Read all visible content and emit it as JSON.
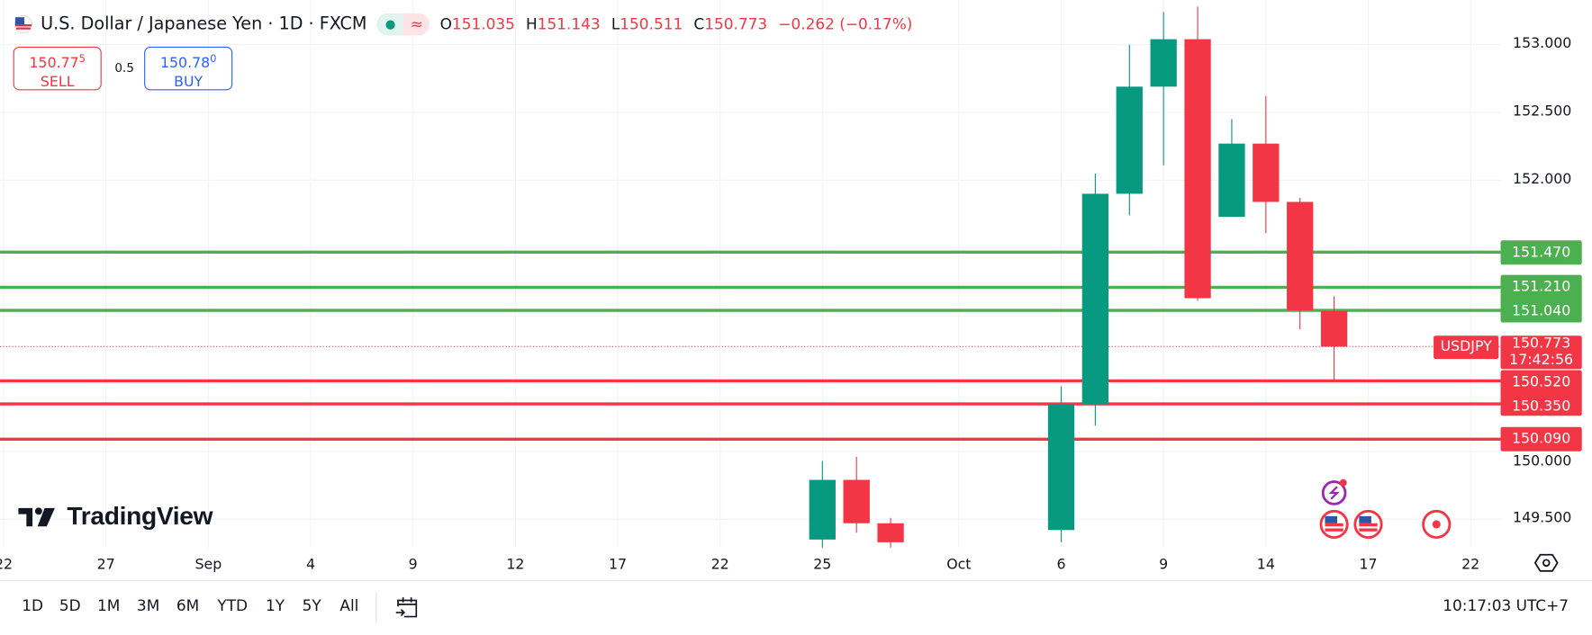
{
  "header": {
    "title": "U.S. Dollar / Japanese Yen · 1D · FXCM",
    "ohlc": {
      "o_label": "O",
      "o": "151.035",
      "h_label": "H",
      "h": "151.143",
      "l_label": "L",
      "l": "150.511",
      "c_label": "C",
      "c": "150.773",
      "change": "−0.262 (−0.17%)"
    },
    "market_status_icon": "green-dot-icon",
    "delayed_icon": "approx-icon"
  },
  "trade": {
    "sell_price": "150.77",
    "sell_sup": "5",
    "sell_label": "SELL",
    "spread": "0.5",
    "buy_price": "150.78",
    "buy_sup": "0",
    "buy_label": "BUY"
  },
  "logo": {
    "text": "TradingView"
  },
  "colors": {
    "up": "#089981",
    "down": "#f23645",
    "support_line": "#f23645",
    "resistance_line": "#4caf50",
    "grid": "#f0f3fa"
  },
  "chart_data": {
    "type": "candlestick",
    "symbol": "USDJPY",
    "interval": "1D",
    "ylim": [
      149.3,
      153.3
    ],
    "y_ticks": [
      "153.000",
      "152.500",
      "152.000",
      "150.000",
      "149.500"
    ],
    "x_ticks": [
      {
        "label": "22",
        "date": "2025-08-22"
      },
      {
        "label": "27",
        "date": "2025-08-27"
      },
      {
        "label": "Sep",
        "date": "2025-09-01"
      },
      {
        "label": "4",
        "date": "2025-09-04"
      },
      {
        "label": "9",
        "date": "2025-09-09"
      },
      {
        "label": "12",
        "date": "2025-09-12"
      },
      {
        "label": "17",
        "date": "2025-09-17"
      },
      {
        "label": "22",
        "date": "2025-09-22"
      },
      {
        "label": "25",
        "date": "2025-09-25"
      },
      {
        "label": "Oct",
        "date": "2025-10-01"
      },
      {
        "label": "6",
        "date": "2025-10-06"
      },
      {
        "label": "9",
        "date": "2025-10-09"
      },
      {
        "label": "14",
        "date": "2025-10-14"
      },
      {
        "label": "17",
        "date": "2025-10-17"
      },
      {
        "label": "22",
        "date": "2025-10-22"
      }
    ],
    "candles": [
      {
        "date": "2025-09-25",
        "o": 149.35,
        "h": 149.93,
        "l": 149.2,
        "c": 149.79
      },
      {
        "date": "2025-09-26",
        "o": 149.79,
        "h": 149.96,
        "l": 149.4,
        "c": 149.47
      },
      {
        "date": "2025-09-29",
        "o": 149.47,
        "h": 149.51,
        "l": 149.2,
        "c": 149.33
      },
      {
        "date": "2025-10-06",
        "o": 149.42,
        "h": 150.48,
        "l": 149.33,
        "c": 150.35
      },
      {
        "date": "2025-10-07",
        "o": 150.35,
        "h": 152.05,
        "l": 150.19,
        "c": 151.9
      },
      {
        "date": "2025-10-08",
        "o": 151.9,
        "h": 153.0,
        "l": 151.74,
        "c": 152.69
      },
      {
        "date": "2025-10-09",
        "o": 152.69,
        "h": 153.24,
        "l": 152.11,
        "c": 153.04
      },
      {
        "date": "2025-10-10",
        "o": 153.04,
        "h": 153.28,
        "l": 151.11,
        "c": 151.13
      },
      {
        "date": "2025-10-13",
        "o": 151.73,
        "h": 152.45,
        "l": 151.73,
        "c": 152.27
      },
      {
        "date": "2025-10-14",
        "o": 152.27,
        "h": 152.62,
        "l": 151.61,
        "c": 151.84
      },
      {
        "date": "2025-10-15",
        "o": 151.84,
        "h": 151.87,
        "l": 150.9,
        "c": 151.04
      },
      {
        "date": "2025-10-16",
        "o": 151.035,
        "h": 151.143,
        "l": 150.511,
        "c": 150.773
      }
    ],
    "resistance_levels": [
      "151.470",
      "151.210",
      "151.040"
    ],
    "support_levels": [
      "150.520",
      "150.350",
      "150.090"
    ],
    "last_price": {
      "value": "150.773",
      "countdown": "17:42:56",
      "symbol_label": "USDJPY"
    },
    "event_markers": [
      {
        "date": "2025-10-16",
        "icon": "lightning-icon",
        "row": "upper"
      },
      {
        "date": "2025-10-16",
        "icon": "us-flag-icon",
        "row": "lower"
      },
      {
        "date": "2025-10-17",
        "icon": "us-flag-icon",
        "row": "lower"
      },
      {
        "date": "2025-10-21",
        "icon": "red-dot-icon",
        "row": "lower"
      }
    ]
  },
  "toolbar": {
    "ranges": [
      "1D",
      "5D",
      "1M",
      "3M",
      "6M",
      "YTD",
      "1Y",
      "5Y",
      "All"
    ],
    "date_range_icon": "calendar-arrow-icon",
    "clock": "10:17:03 UTC+7",
    "settings_icon": "gear-icon"
  }
}
